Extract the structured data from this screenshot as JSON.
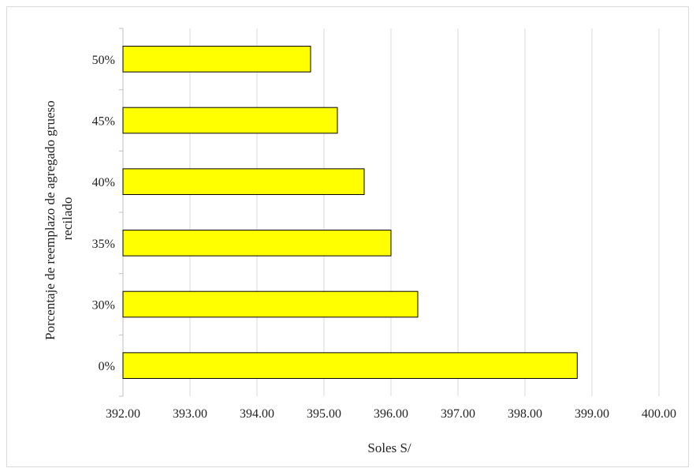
{
  "chart_data": {
    "type": "bar",
    "orientation": "horizontal",
    "categories": [
      "0%",
      "30%",
      "35%",
      "40%",
      "45%",
      "50%"
    ],
    "values": [
      398.78,
      396.4,
      396.0,
      395.6,
      395.2,
      394.8
    ],
    "xlabel": "Soles S/",
    "ylabel_lines": [
      "Porcentaje de reemplazo de agregado grueso",
      "recilado"
    ],
    "xlim": [
      392,
      400
    ],
    "x_ticks": [
      "392.00",
      "393.00",
      "394.00",
      "395.00",
      "396.00",
      "397.00",
      "398.00",
      "399.00",
      "400.00"
    ],
    "grid": "vertical",
    "legend": "none",
    "colors": {
      "bar_fill": "#ffff00",
      "bar_stroke": "#000000",
      "grid": "#d9d9d9",
      "axis": "#bfbfbf"
    }
  }
}
